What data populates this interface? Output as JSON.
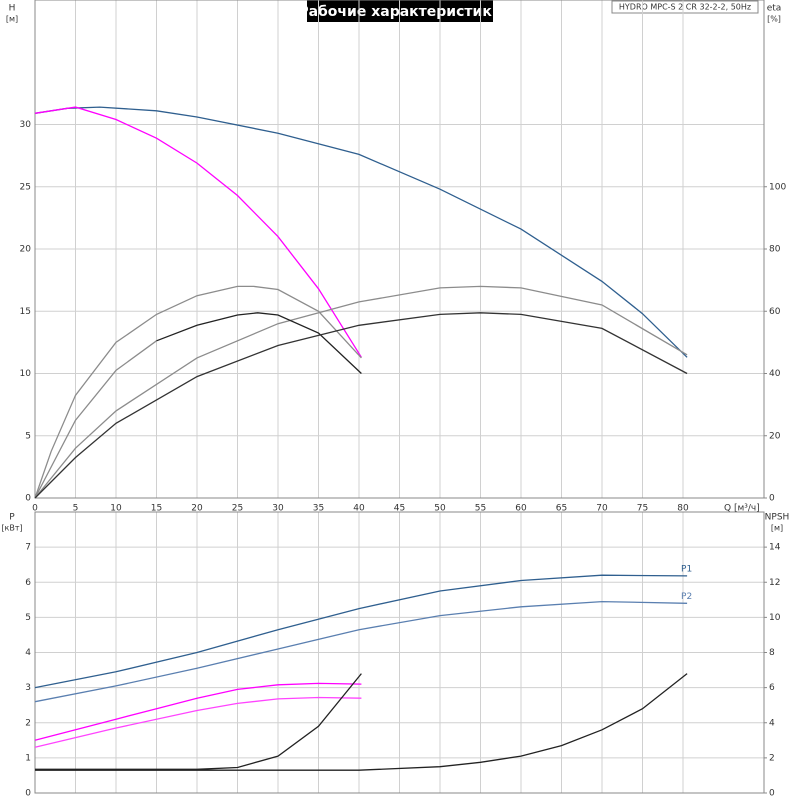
{
  "chart_data": [
    {
      "type": "line",
      "title": "Рабочие характеристики",
      "subtitle": "HYDRO MPC-S 2 CR 32-2-2, 50Hz",
      "y_label": "H",
      "y_unit": "[м]",
      "y2_label": "eta",
      "y2_unit": "[%]",
      "x_label": "Q [м³/ч]",
      "xlim": [
        0,
        90
      ],
      "xticks": [
        0,
        5,
        10,
        15,
        20,
        25,
        30,
        35,
        40,
        45,
        50,
        55,
        60,
        65,
        70,
        75,
        80
      ],
      "ylim": [
        0,
        40
      ],
      "yticks": [
        0,
        5,
        10,
        15,
        20,
        25,
        30
      ],
      "y2lim": [
        0,
        160
      ],
      "y2ticks": [
        0,
        20,
        40,
        60,
        80,
        100
      ],
      "grid": true,
      "series": [
        {
          "color": "#2f5f8f",
          "x": [
            0,
            4,
            8,
            15,
            20,
            30,
            40,
            50,
            60,
            70,
            75,
            80.5
          ],
          "values": [
            30.9,
            31.3,
            31.4,
            31.1,
            30.6,
            29.3,
            27.6,
            24.8,
            21.6,
            17.4,
            14.8,
            11.3
          ]
        },
        {
          "color": "#ff00ff",
          "x": [
            0,
            5,
            10,
            15,
            20,
            25,
            30,
            35,
            40.3
          ],
          "values": [
            30.9,
            31.4,
            30.4,
            28.9,
            26.9,
            24.3,
            21.0,
            16.8,
            11.3
          ]
        },
        {
          "color": "#8c8c8c",
          "axis": "y2",
          "x": [
            0,
            2,
            5,
            10,
            15,
            20,
            25,
            27,
            30,
            35,
            40.3
          ],
          "values": [
            0,
            15,
            33,
            50,
            59,
            65,
            68,
            68,
            67,
            60,
            45
          ]
        },
        {
          "color": "#8c8c8c",
          "axis": "y2",
          "x": [
            0,
            5,
            10,
            20,
            30,
            40,
            50,
            55,
            60,
            70,
            80.5
          ],
          "values": [
            0,
            16,
            28,
            45,
            56,
            63,
            67.5,
            68,
            67.5,
            62,
            46
          ]
        },
        {
          "color": "#8c8c8c",
          "axis": "y2",
          "x": [
            0,
            5,
            10,
            15
          ],
          "values": [
            0,
            25,
            41,
            50.5
          ]
        },
        {
          "color": "#222222",
          "axis": "y2",
          "x": [
            15,
            20,
            25,
            27.5,
            30,
            35,
            40.3
          ],
          "values": [
            50.5,
            55.5,
            58.8,
            59.5,
            58.8,
            53,
            40
          ]
        },
        {
          "color": "#333333",
          "axis": "y2",
          "x": [
            0,
            5,
            10,
            20,
            30,
            40,
            50,
            55,
            60,
            70,
            80.5
          ],
          "values": [
            0,
            13,
            24,
            39,
            49,
            55.5,
            59,
            59.5,
            59,
            54.5,
            40
          ]
        }
      ]
    },
    {
      "type": "line",
      "y_label": "P",
      "y_unit": "[кВт]",
      "y2_label": "NPSH",
      "y2_unit": "[м]",
      "xlim": [
        0,
        90
      ],
      "ylim": [
        0,
        8
      ],
      "yticks": [
        0,
        1,
        2,
        3,
        4,
        5,
        6,
        7
      ],
      "y2lim": [
        0,
        16
      ],
      "y2ticks": [
        0,
        2,
        4,
        6,
        8,
        10,
        12,
        14
      ],
      "grid": true,
      "series": [
        {
          "name": "P1",
          "color": "#2f5f8f",
          "x": [
            0,
            10,
            20,
            30,
            40,
            50,
            60,
            70,
            80.5
          ],
          "values": [
            3.0,
            3.45,
            4.0,
            4.65,
            5.25,
            5.75,
            6.05,
            6.2,
            6.18
          ]
        },
        {
          "name": "P2",
          "color": "#5a7fb0",
          "x": [
            0,
            10,
            20,
            30,
            40,
            50,
            60,
            70,
            80.5
          ],
          "values": [
            2.6,
            3.05,
            3.55,
            4.1,
            4.65,
            5.05,
            5.3,
            5.45,
            5.4
          ]
        },
        {
          "color": "#ff00ff",
          "x": [
            0,
            10,
            15,
            20,
            25,
            30,
            35,
            40.3
          ],
          "values": [
            1.5,
            2.1,
            2.4,
            2.7,
            2.95,
            3.08,
            3.12,
            3.1
          ]
        },
        {
          "color": "#ff44ff",
          "x": [
            0,
            10,
            20,
            25,
            30,
            35,
            40.3
          ],
          "values": [
            1.3,
            1.85,
            2.35,
            2.55,
            2.68,
            2.72,
            2.7
          ]
        },
        {
          "color": "#222222",
          "axis": "y2",
          "x": [
            0,
            20,
            25,
            30,
            35,
            40.3
          ],
          "values": [
            1.35,
            1.35,
            1.45,
            2.1,
            3.8,
            6.8
          ]
        },
        {
          "color": "#222222",
          "axis": "y2",
          "x": [
            0,
            40,
            50,
            55,
            60,
            65,
            70,
            75,
            80.5
          ],
          "values": [
            1.3,
            1.3,
            1.5,
            1.75,
            2.1,
            2.7,
            3.6,
            4.8,
            6.8
          ]
        }
      ]
    }
  ]
}
